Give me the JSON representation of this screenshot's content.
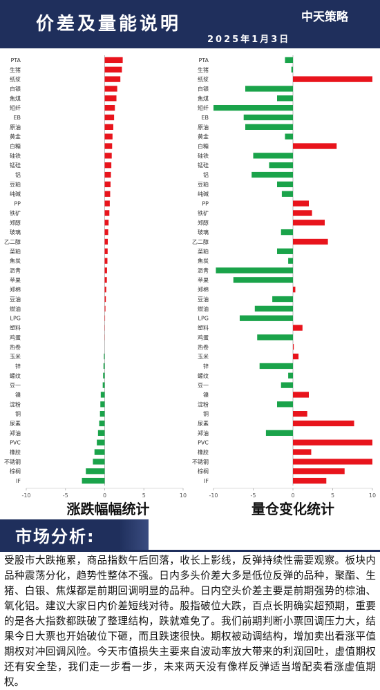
{
  "header": {
    "title": "价差及量能说明",
    "date": "2025年1月3日",
    "logo": "中天策略"
  },
  "chart_data": [
    {
      "type": "bar",
      "orientation": "horizontal",
      "title": "涨跌幅幅统计",
      "categories": [
        "PTA",
        "生猪",
        "纸浆",
        "白银",
        "焦煤",
        "短纤",
        "EB",
        "原油",
        "黄金",
        "白糖",
        "硅铁",
        "锰硅",
        "铝",
        "豆粕",
        "纯碱",
        "PP",
        "铁矿",
        "郑醇",
        "玻璃",
        "乙二醇",
        "菜粕",
        "焦炭",
        "沥青",
        "苹果",
        "郑棉",
        "豆油",
        "燃油",
        "LPG",
        "塑料",
        "鸡蛋",
        "热卷",
        "玉米",
        "锌",
        "螺纹",
        "豆一",
        "镍",
        "淀粉",
        "铜",
        "尿素",
        "郑油",
        "PVC",
        "橡胶",
        "不锈钢",
        "棕榈",
        "IF"
      ],
      "values": [
        2.3,
        2.2,
        2.0,
        1.6,
        1.5,
        1.3,
        1.2,
        1.1,
        1.0,
        0.95,
        0.9,
        0.85,
        0.8,
        0.75,
        0.7,
        0.65,
        0.6,
        0.5,
        0.45,
        0.4,
        0.38,
        0.35,
        0.3,
        0.28,
        0.2,
        0.15,
        0.1,
        0.05,
        0.03,
        0.02,
        0,
        -0.1,
        -0.15,
        -0.2,
        -0.25,
        -0.5,
        -0.55,
        -0.6,
        -0.7,
        -0.85,
        -1.0,
        -1.3,
        -1.5,
        -2.4,
        -2.9
      ],
      "positive_color": "#e8141c",
      "negative_color": "#1aa34a",
      "xlim": [
        -10,
        10
      ],
      "xticks": [
        -10,
        -5,
        0,
        5,
        10
      ]
    },
    {
      "type": "bar",
      "orientation": "horizontal",
      "title": "量仓变化统计",
      "categories": [
        "PTA",
        "生猪",
        "纸浆",
        "白银",
        "焦煤",
        "短纤",
        "EB",
        "原油",
        "黄金",
        "白糖",
        "硅铁",
        "锰硅",
        "铝",
        "豆粕",
        "纯碱",
        "PP",
        "铁矿",
        "郑醇",
        "玻璃",
        "乙二醇",
        "菜粕",
        "焦炭",
        "沥青",
        "苹果",
        "郑棉",
        "豆油",
        "燃油",
        "LPG",
        "塑料",
        "鸡蛋",
        "热卷",
        "玉米",
        "锌",
        "螺纹",
        "豆一",
        "镍",
        "淀粉",
        "铜",
        "尿素",
        "郑油",
        "PVC",
        "橡胶",
        "不锈钢",
        "棕榈",
        "IF"
      ],
      "values": [
        -1.0,
        -0.2,
        10,
        -6,
        -2,
        -10,
        -6.2,
        -6,
        -1,
        5.5,
        -5,
        -3,
        -5.2,
        -2,
        -1.4,
        2,
        2.4,
        4,
        -1.5,
        4.4,
        -2,
        -0.6,
        -9.7,
        -7.5,
        0.3,
        -2.6,
        -4.8,
        -6.7,
        1.2,
        -4.5,
        0.1,
        0.7,
        -4.2,
        -0.6,
        -1.5,
        2,
        -2,
        1.8,
        7.7,
        -3.4,
        10,
        2.3,
        10,
        6.5,
        4.2
      ],
      "positive_color": "#e8141c",
      "negative_color": "#1aa34a",
      "xlim": [
        -10,
        10
      ],
      "xticks": [
        -10,
        -5,
        0,
        5,
        10
      ]
    }
  ],
  "analysis": {
    "title": "市场分析:",
    "text": "受股市大跌拖累，商品指数午后回落，收长上影线，反弹持续性需要观察。板块内品种震荡分化，趋势性整体不强。日内多头价差大多是低位反弹的品种，聚酯、生猪、白银、焦煤都是前期回调明显的品种。日内空头价差主要是前期强势的棕油、氧化铝。建议大家日内价差短线对待。股指破位大跌，百点长阴确实超预期，重要的是各大指数都跌破了整理结构，跌就难免了。我们前期判断小票回调压力大，结果今日大票也开始破位下砸，而且跌速很快。期权被动调结构，增加卖出看涨平值期权对冲回调风险。今天市值损失主要来自波动率放大带来的利润回吐，虚值期权还有安全垫，我们走一步看一步，未来两天没有像样反弹适当增配卖看涨虚值期权。"
  }
}
